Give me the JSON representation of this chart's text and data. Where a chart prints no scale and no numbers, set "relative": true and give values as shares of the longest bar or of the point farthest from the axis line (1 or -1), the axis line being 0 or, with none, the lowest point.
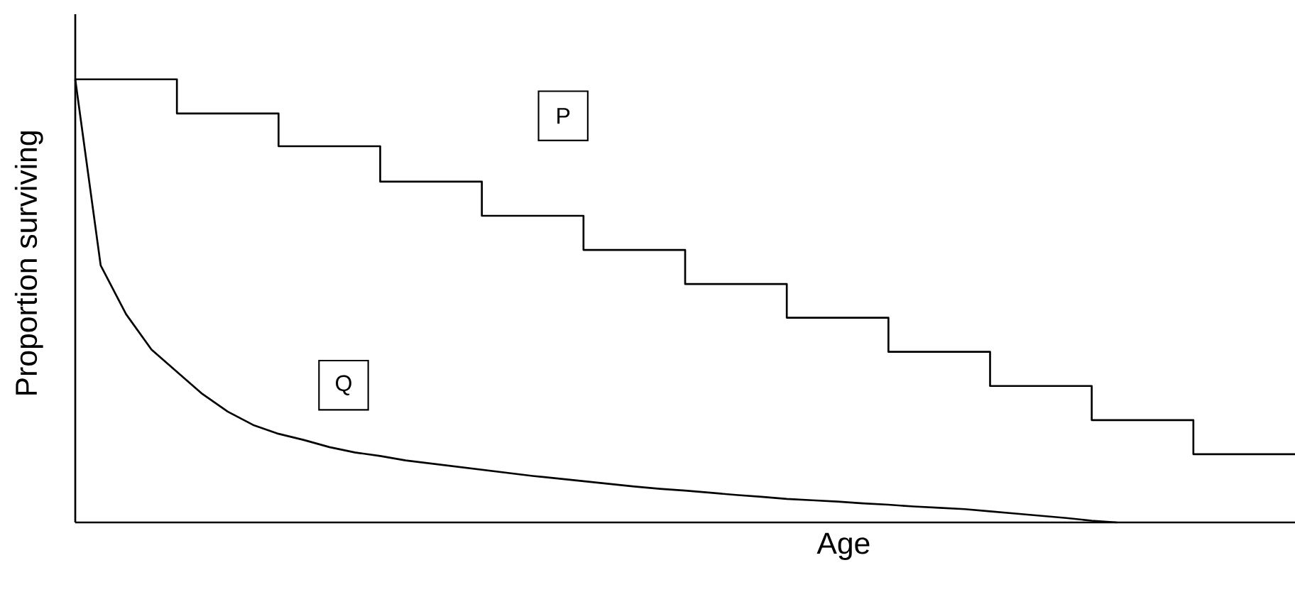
{
  "chart_data": {
    "type": "line",
    "relative": true,
    "xlabel": "Age",
    "ylabel": "Proportion surviving",
    "tick_labels": false,
    "marker": "none",
    "line_style": "solid",
    "annotations": [
      "P",
      "Q"
    ],
    "categories": [
      null,
      null,
      null,
      null,
      null,
      null,
      null,
      null,
      null,
      null,
      null,
      null,
      null,
      null,
      null,
      null,
      null,
      null,
      null,
      null,
      null,
      null,
      null,
      null,
      null,
      null,
      null,
      null,
      null,
      null,
      null,
      null,
      null,
      null,
      null,
      null,
      null,
      null,
      null,
      null,
      null,
      null,
      null,
      null,
      null,
      null,
      null,
      null,
      null
    ],
    "series": [
      {
        "type": "step",
        "color": "#000000",
        "values": [
          1.0,
          1.0,
          1.0,
          1.0,
          0.923,
          0.923,
          0.923,
          0.923,
          0.849,
          0.849,
          0.849,
          0.849,
          0.769,
          0.769,
          0.769,
          0.769,
          0.692,
          0.692,
          0.692,
          0.692,
          0.615,
          0.615,
          0.615,
          0.615,
          0.538,
          0.538,
          0.538,
          0.538,
          0.462,
          0.462,
          0.462,
          0.462,
          0.385,
          0.385,
          0.385,
          0.385,
          0.308,
          0.308,
          0.308,
          0.308,
          0.231,
          0.231,
          0.231,
          0.231,
          0.154,
          0.154,
          0.154,
          0.154,
          0.154
        ]
      },
      {
        "color": "#000000",
        "values": [
          1.0,
          0.58,
          0.47,
          0.39,
          0.34,
          0.29,
          0.25,
          0.22,
          0.2,
          0.186,
          0.17,
          0.158,
          0.15,
          0.14,
          0.133,
          0.126,
          0.119,
          0.112,
          0.105,
          0.099,
          0.093,
          0.087,
          0.081,
          0.076,
          0.072,
          0.067,
          0.062,
          0.058,
          0.053,
          0.05,
          0.047,
          0.043,
          0.04,
          0.036,
          0.033,
          0.03,
          0.025,
          0.02,
          0.015,
          0.01,
          0.004,
          0.0,
          null,
          null,
          null,
          null,
          null,
          null,
          null
        ]
      }
    ]
  }
}
